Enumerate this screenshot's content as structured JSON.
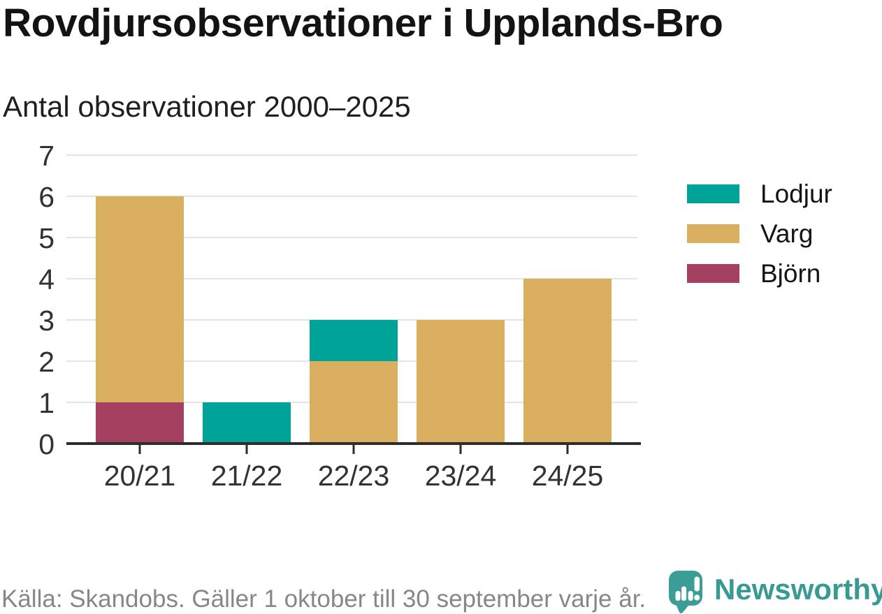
{
  "chart_data": {
    "type": "bar",
    "stacked": true,
    "title": "Rovdjursobservationer i Upplands-Bro",
    "subtitle": "Antal observationer 2000–2025",
    "categories": [
      "20/21",
      "21/22",
      "22/23",
      "23/24",
      "24/25"
    ],
    "series": [
      {
        "name": "Lodjur",
        "color": "#00a398",
        "values": [
          0,
          1,
          1,
          0,
          0
        ]
      },
      {
        "name": "Varg",
        "color": "#dab060",
        "values": [
          5,
          0,
          2,
          3,
          4
        ]
      },
      {
        "name": "Björn",
        "color": "#a64060",
        "values": [
          1,
          0,
          0,
          0,
          0
        ]
      }
    ],
    "stack_order_bottom_to_top": [
      "Björn",
      "Varg",
      "Lodjur"
    ],
    "stack_totals": [
      6,
      1,
      3,
      3,
      4
    ],
    "ylim": [
      0,
      7
    ],
    "yticks": [
      0,
      1,
      2,
      3,
      4,
      5,
      6,
      7
    ],
    "grid": true,
    "legend_position": "right",
    "colors": {
      "grid": "#e4e4e4",
      "axis": "#2d2d2d",
      "tick_label": "#323232"
    }
  },
  "footer": {
    "source": "Källa: Skandobs. Gäller 1 oktober till 30 september varje år.",
    "brand": "Newsworthy",
    "brand_color": "#399a93"
  },
  "icons": {
    "brand": "speech-bubble-bar-chart-icon"
  }
}
